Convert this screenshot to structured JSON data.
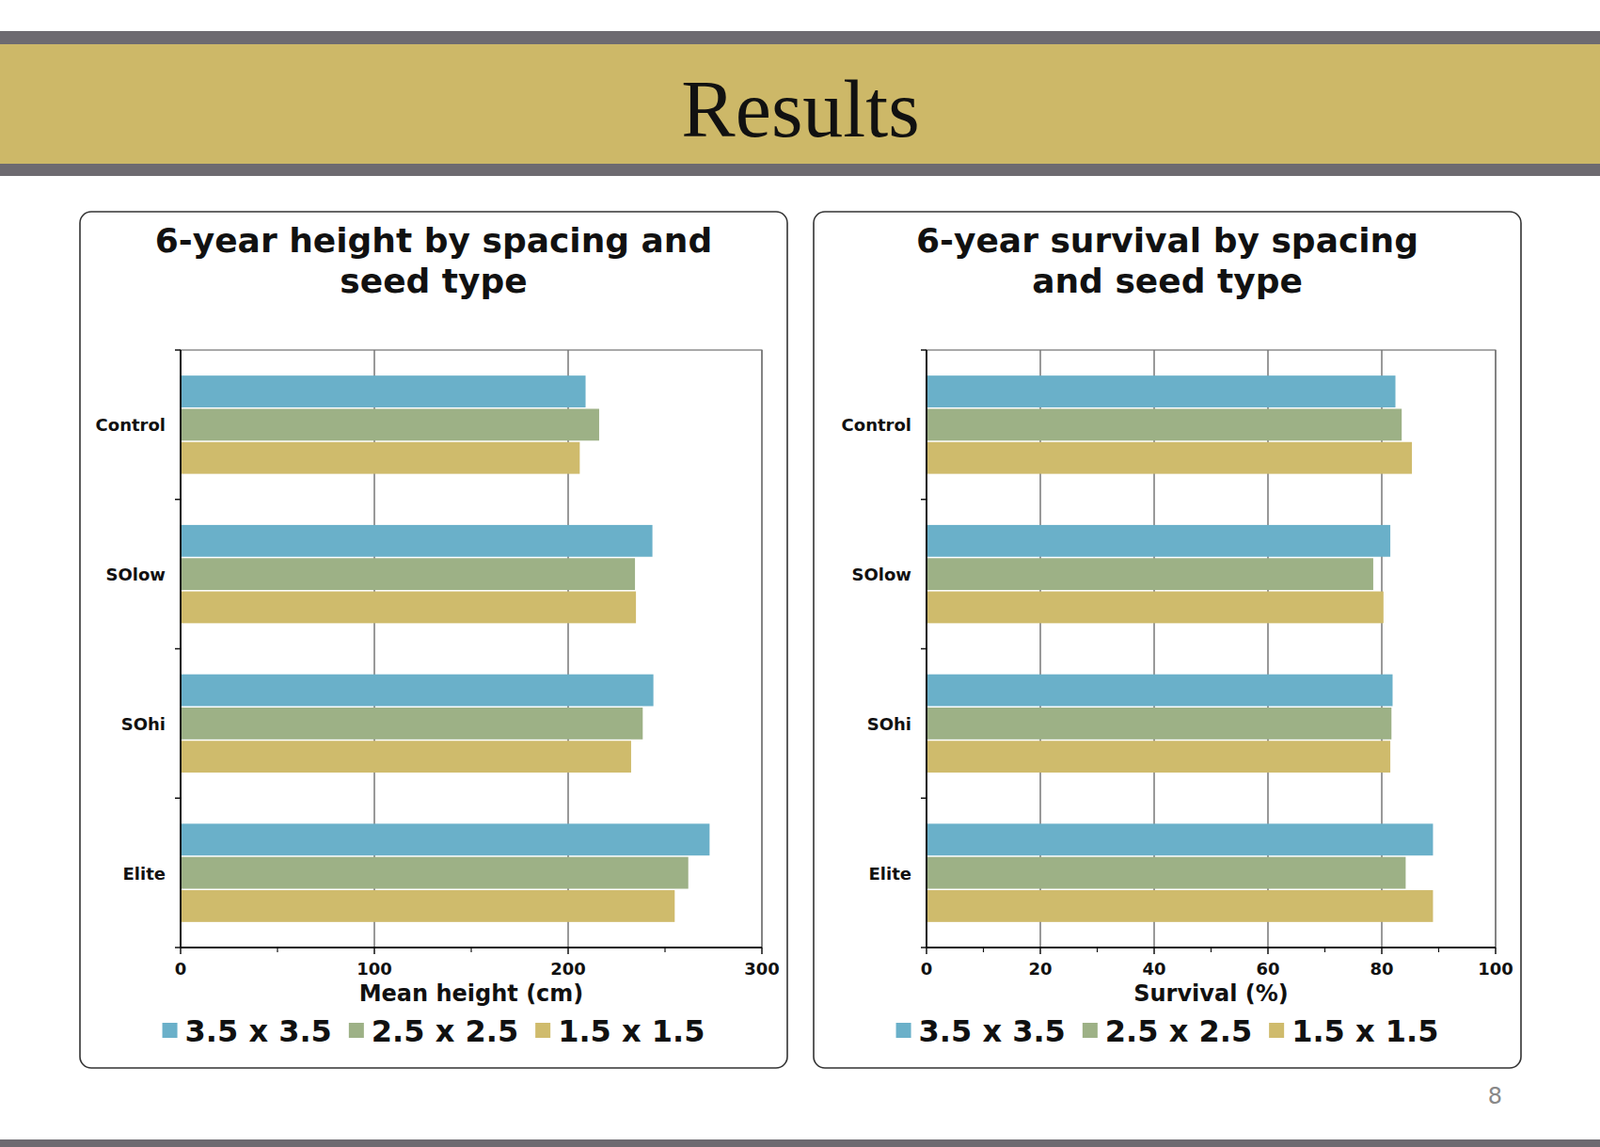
{
  "slide": {
    "title": "Results",
    "page_number": "8"
  },
  "chart_data": [
    {
      "type": "bar",
      "orientation": "horizontal",
      "title": "6-year height by spacing and seed type",
      "x_label": "Mean height (cm)",
      "categories": [
        "Control",
        "SOlow",
        "SOhi",
        "Elite"
      ],
      "series": [
        {
          "name": "3.5 x 3.5",
          "color": "#6ab0c9",
          "values": [
            209,
            243.5,
            244,
            273
          ]
        },
        {
          "name": "2.5 x 2.5",
          "color": "#9db186",
          "values": [
            216,
            234.5,
            238.5,
            262
          ]
        },
        {
          "name": "1.5 x 1.5",
          "color": "#cfbb6c",
          "values": [
            206,
            235,
            232.5,
            255
          ]
        }
      ],
      "xlim": [
        0,
        300
      ],
      "xticks": [
        0,
        100,
        200,
        300
      ],
      "grid": true,
      "legend": "bottom"
    },
    {
      "type": "bar",
      "orientation": "horizontal",
      "title": "6-year survival by spacing and seed type",
      "x_label": "Survival (%)",
      "categories": [
        "Control",
        "SOlow",
        "SOhi",
        "Elite"
      ],
      "series": [
        {
          "name": "3.5 x 3.5",
          "color": "#6ab0c9",
          "values": [
            82.4,
            81.5,
            81.9,
            89
          ]
        },
        {
          "name": "2.5 x 2.5",
          "color": "#9db186",
          "values": [
            83.5,
            78.5,
            81.7,
            84.2
          ]
        },
        {
          "name": "1.5 x 1.5",
          "color": "#cfbb6c",
          "values": [
            85.3,
            80.3,
            81.5,
            89
          ]
        }
      ],
      "xlim": [
        0,
        100
      ],
      "xticks": [
        0,
        20,
        40,
        60,
        80,
        100
      ],
      "grid": true,
      "legend": "bottom"
    }
  ]
}
